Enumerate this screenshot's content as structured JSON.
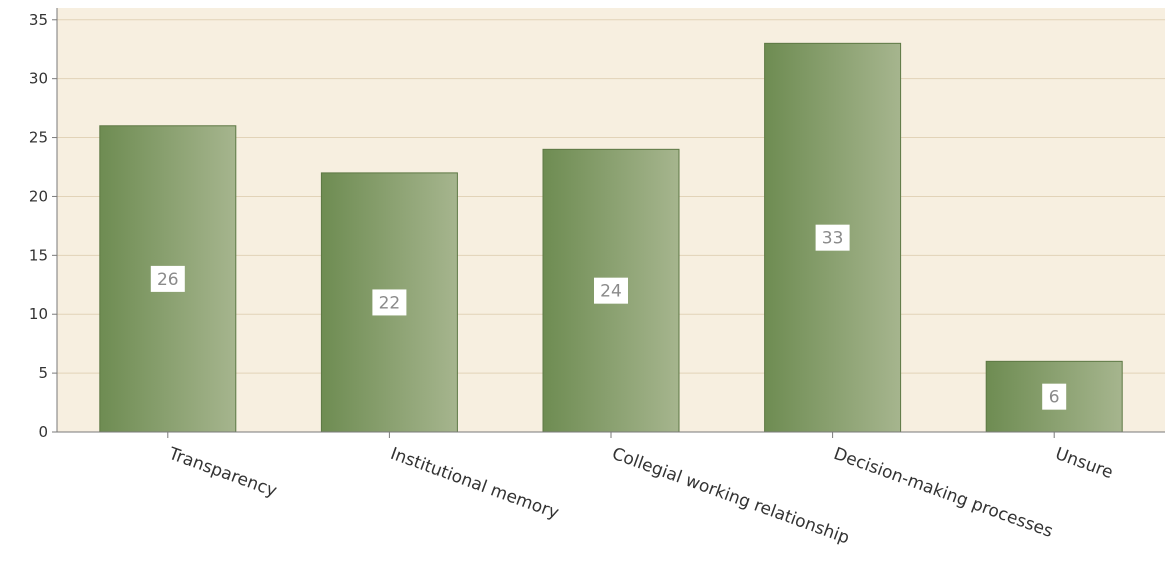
{
  "chart_data": {
    "type": "bar",
    "categories": [
      "Transparency",
      "Institutional memory",
      "Collegial working relationship",
      "Decision-making processes",
      "Unsure"
    ],
    "values": [
      26,
      22,
      24,
      33,
      6
    ],
    "data_labels": [
      "26",
      "22",
      "24",
      "33",
      "6"
    ],
    "ylim": [
      0,
      36
    ],
    "yticks": [
      0,
      5,
      10,
      15,
      20,
      25,
      30,
      35
    ],
    "grid": true,
    "legend": "none",
    "colors": {
      "plot_background": "#f7efe0",
      "bar_dark": "#6e8c52",
      "bar_light": "#a6b58e",
      "grid": "#e2d3b8",
      "axis": "#7a7a7a"
    }
  }
}
